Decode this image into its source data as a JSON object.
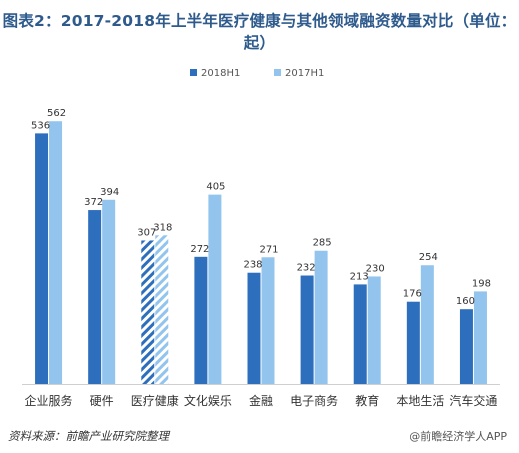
{
  "chart_data": {
    "type": "bar",
    "title": "图表2：2017-2018年上半年医疗健康与其他领域融资数量对比（单位：起）",
    "categories": [
      "企业服务",
      "硬件",
      "医疗健康",
      "文化娱乐",
      "金融",
      "电子商务",
      "教育",
      "本地生活",
      "汽车交通"
    ],
    "series": [
      {
        "name": "2018H1",
        "values": [
          536,
          372,
          307,
          272,
          238,
          232,
          213,
          176,
          160
        ],
        "color": "#2e6fbd",
        "highlight_color": "#2e6fbd"
      },
      {
        "name": "2017H1",
        "values": [
          562,
          394,
          318,
          405,
          271,
          285,
          230,
          254,
          198
        ],
        "color": "#93c4ee",
        "highlight_color": "#93c4ee"
      }
    ],
    "highlighted_category": "医疗健康",
    "ylim": [
      0,
      600
    ],
    "grid": false,
    "legend_position": "top"
  },
  "source": "资料来源：前瞻产业研究院整理",
  "logo_text": "@前瞻经济学人APP"
}
